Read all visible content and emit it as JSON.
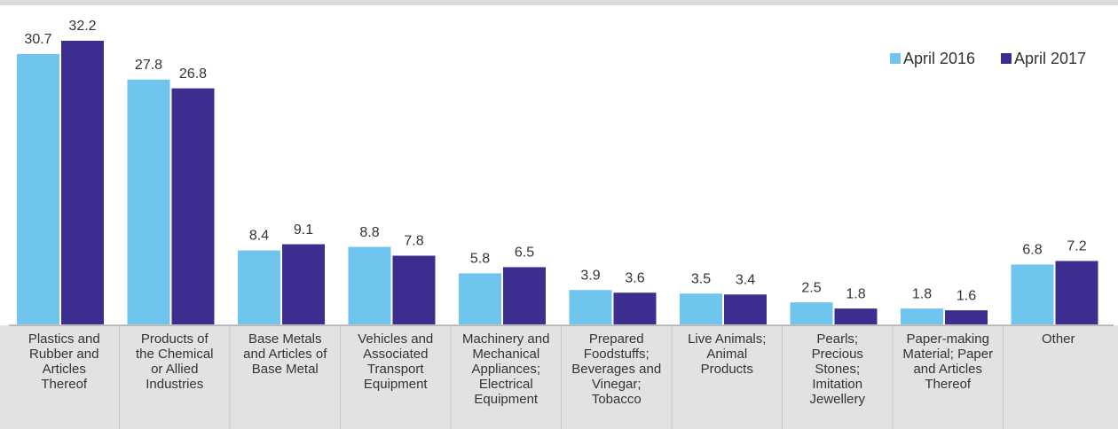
{
  "chart_data": {
    "type": "bar",
    "categories": [
      "Plastics and\nRubber and\nArticles\nThereof",
      "Products of\nthe Chemical\nor Allied\nIndustries",
      "Base Metals\nand Articles of\nBase Metal",
      "Vehicles and\nAssociated\nTransport\nEquipment",
      "Machinery and\nMechanical\nAppliances;\nElectrical\nEquipment",
      "Prepared\nFoodstuffs;\nBeverages and\nVinegar;\nTobacco",
      "Live Animals;\nAnimal\nProducts",
      "Pearls;\nPrecious\nStones;\nImitation\nJewellery",
      "Paper-making\nMaterial; Paper\nand Articles\nThereof",
      "Other"
    ],
    "series": [
      {
        "name": "April 2016",
        "color": "#6fc5ee",
        "values": [
          30.7,
          27.8,
          8.4,
          8.8,
          5.8,
          3.9,
          3.5,
          2.5,
          1.8,
          6.8
        ]
      },
      {
        "name": "April 2017",
        "color": "#3b2e8e",
        "values": [
          32.2,
          26.8,
          9.1,
          7.8,
          6.5,
          3.6,
          3.4,
          1.8,
          1.6,
          7.2
        ]
      }
    ],
    "legend": "top-right"
  }
}
